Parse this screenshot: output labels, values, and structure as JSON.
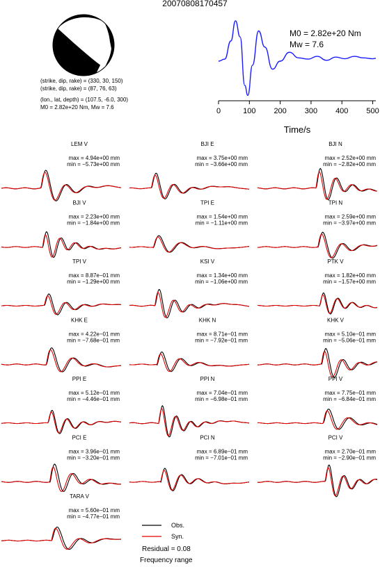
{
  "event_id": "20070808170457",
  "mechanism": {
    "line1": "(strike, dip, rake) = (330, 30, 150)",
    "line2": "(strike, dip, rake) = (87, 76, 63)",
    "line3": "(lon., lat, depth) = (107.5, -6.0, 300)",
    "line4": "M0 = 2.82e+20 Nm, Mw = 7.6"
  },
  "stf": {
    "m0_label": "M0 = 2.82e+20 Nm",
    "mw_label": "Mw = 7.6",
    "xlabel": "Time/s",
    "xticks": [
      "0",
      "100",
      "200",
      "300",
      "400",
      "500"
    ]
  },
  "legend": {
    "obs": "Obs.",
    "syn": "Syn.",
    "residual": "Residual = 0.08",
    "freq": "Frequency range"
  },
  "colors": {
    "obs": "#000000",
    "syn": "#e00000",
    "stf": "#1a1aff"
  },
  "chart_data": [
    {
      "type": "line",
      "name": "source-time-function",
      "xlabel": "Time/s",
      "xlim": [
        0,
        510
      ],
      "x": [
        0,
        20,
        40,
        55,
        70,
        85,
        95,
        110,
        130,
        150,
        175,
        200,
        230,
        260,
        290,
        320,
        350,
        380,
        410,
        440,
        470,
        500,
        510
      ],
      "y": [
        0,
        0.05,
        0.5,
        1.0,
        0.6,
        -0.6,
        -0.85,
        -0.1,
        0.75,
        0.35,
        -0.2,
        0.0,
        0.22,
        0.08,
        0.05,
        0.12,
        0.02,
        0.1,
        0.06,
        0.12,
        0.08,
        0.06,
        0.07
      ]
    },
    {
      "type": "line",
      "name": "waveform-comparison",
      "series_names": [
        "Obs.",
        "Syn."
      ],
      "stations": [
        {
          "label": "LEM V",
          "max": "max = 4.94e+00 mm",
          "min": "min = −5.73e+00 mm"
        },
        {
          "label": "BJI E",
          "max": "max = 3.75e+00 mm",
          "min": "min = −3.66e+00 mm"
        },
        {
          "label": "BJI N",
          "max": "max = 2.52e+00 mm",
          "min": "min = −2.82e+00 mm"
        },
        {
          "label": "BJI V",
          "max": "max = 2.23e+00 mm",
          "min": "min = −1.84e+00 mm"
        },
        {
          "label": "TPI E",
          "max": "max = 1.54e+00 mm",
          "min": "min = −1.11e+00 mm"
        },
        {
          "label": "TPI N",
          "max": "max = 2.59e+00 mm",
          "min": "min = −3.97e+00 mm"
        },
        {
          "label": "TPI V",
          "max": "max = 8.87e−01 mm",
          "min": "min = −1.29e+00 mm"
        },
        {
          "label": "KSI V",
          "max": "max = 1.34e+00 mm",
          "min": "min = −1.06e+00 mm"
        },
        {
          "label": "PTK V",
          "max": "max = 1.82e+00 mm",
          "min": "min = −1.57e+00 mm"
        },
        {
          "label": "KHK E",
          "max": "max = 4.22e−01 mm",
          "min": "min = −7.68e−01 mm"
        },
        {
          "label": "KHK N",
          "max": "max = 8.71e−01 mm",
          "min": "min = −7.92e−01 mm"
        },
        {
          "label": "KHK V",
          "max": "max = 5.10e−01 mm",
          "min": "min = −5.06e−01 mm"
        },
        {
          "label": "PPI E",
          "max": "max = 5.12e−01 mm",
          "min": "min = −4.46e−01 mm"
        },
        {
          "label": "PPI N",
          "max": "max = 7.04e−01 mm",
          "min": "min = −6.98e−01 mm"
        },
        {
          "label": "PPI V",
          "max": "max = 7.75e−01 mm",
          "min": "min = −6.84e−01 mm"
        },
        {
          "label": "PCI E",
          "max": "max = 3.96e−01 mm",
          "min": "min = −3.20e−01 mm"
        },
        {
          "label": "PCI N",
          "max": "max = 6.89e−01 mm",
          "min": "min = −7.01e−01 mm"
        },
        {
          "label": "PCI V",
          "max": "max = 2.70e−01 mm",
          "min": "min = −2.90e−01 mm"
        },
        {
          "label": "TARA V",
          "max": "max = 5.60e−01 mm",
          "min": "min = −4.77e−01 mm"
        }
      ]
    }
  ]
}
